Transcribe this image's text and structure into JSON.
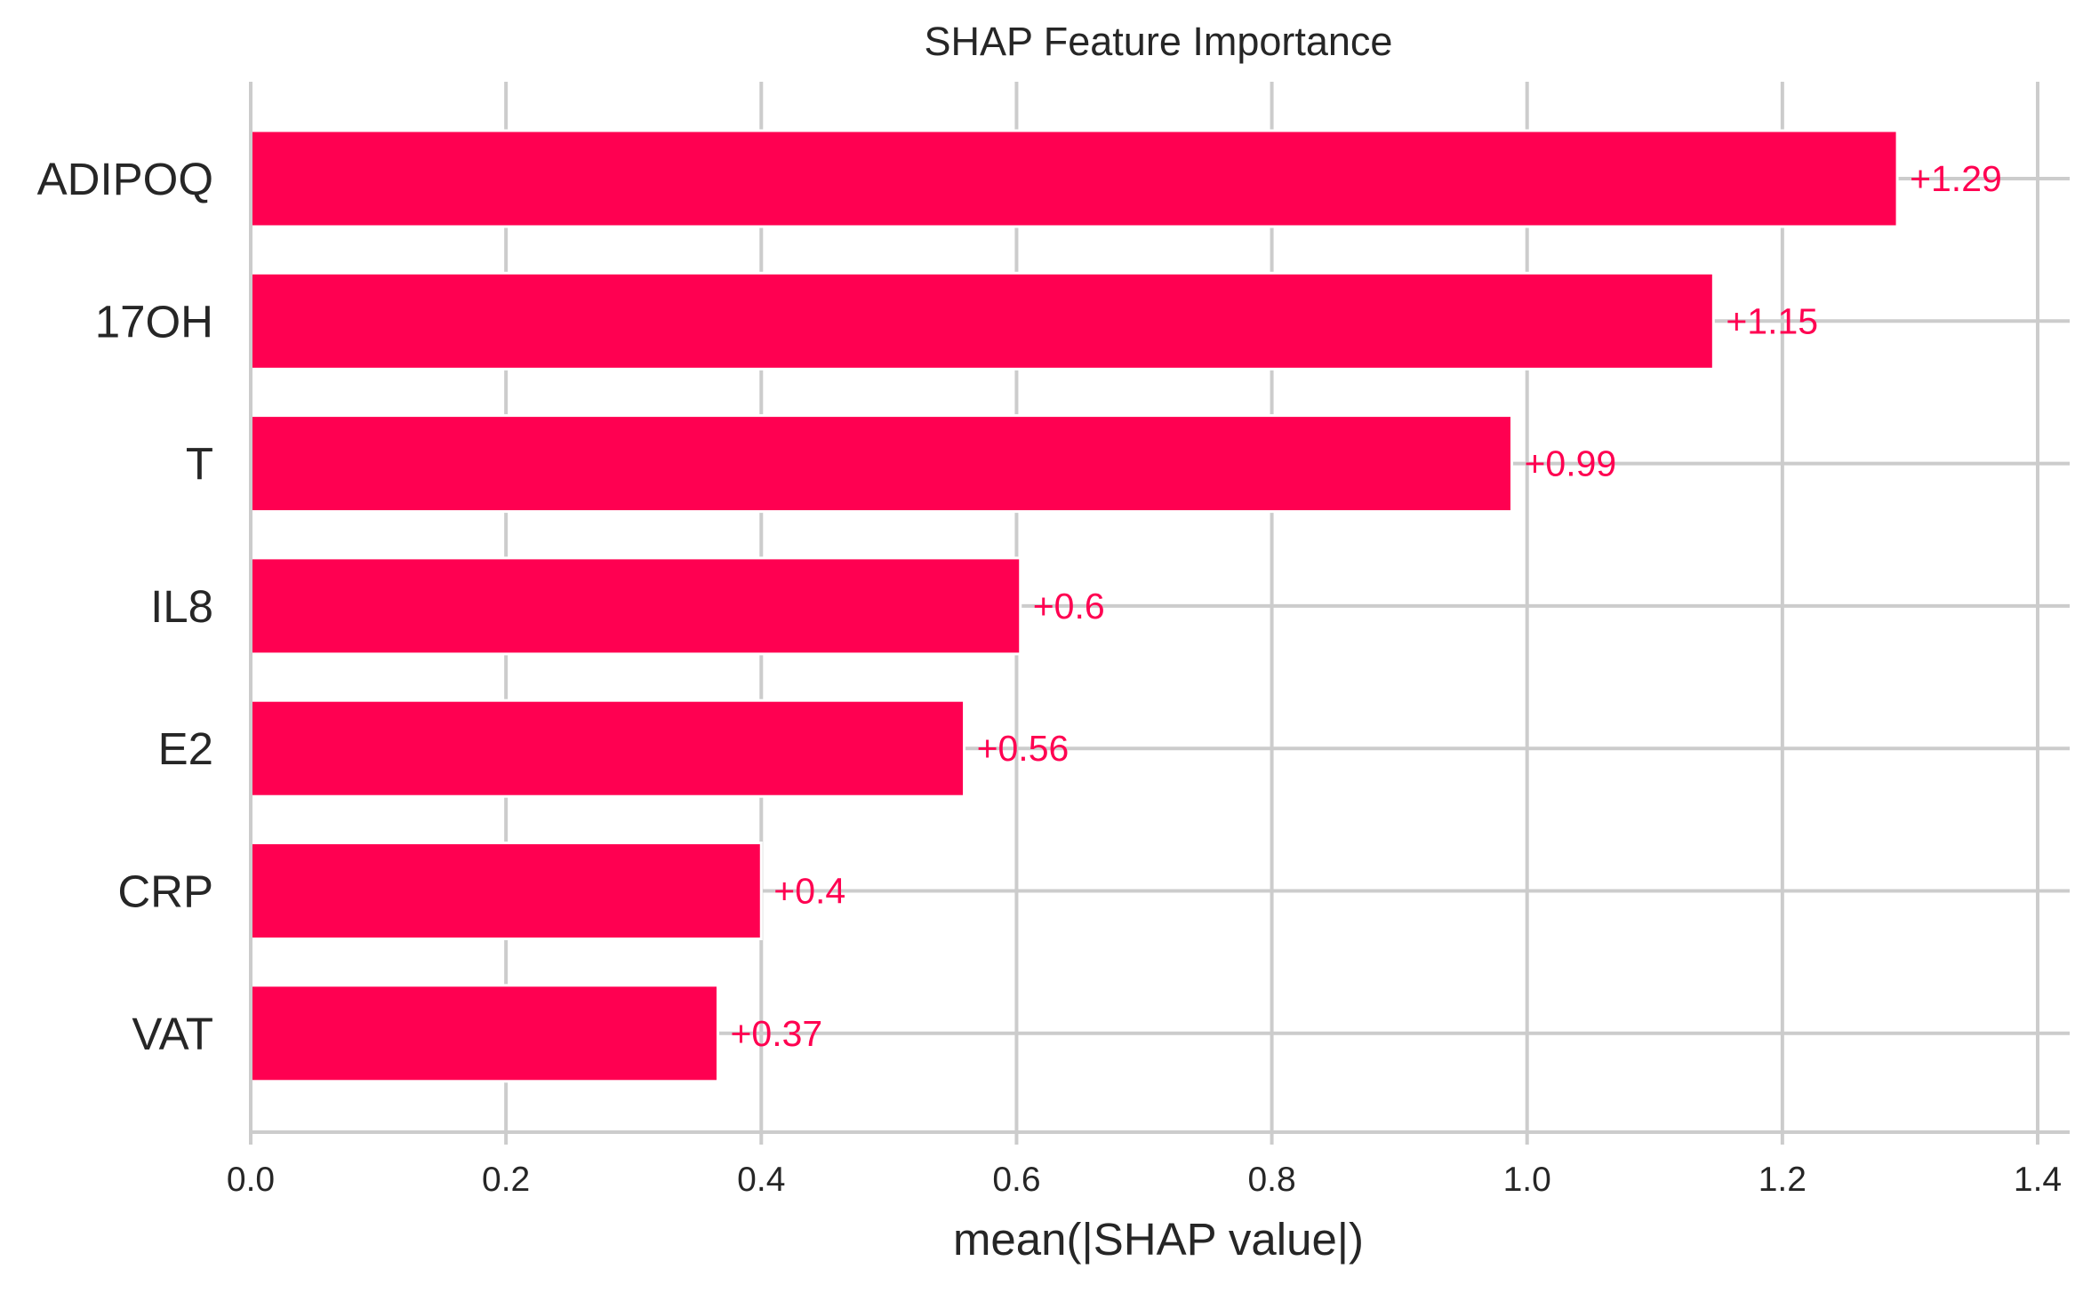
{
  "chart_data": {
    "type": "bar",
    "orientation": "horizontal",
    "title": "SHAP Feature Importance",
    "xlabel": "mean(|SHAP value|)",
    "ylabel": "",
    "xlim": [
      0,
      1.42
    ],
    "xticks": [
      0.0,
      0.2,
      0.4,
      0.6,
      0.8,
      1.0,
      1.2,
      1.4
    ],
    "xtick_labels": [
      "0.0",
      "0.2",
      "0.4",
      "0.6",
      "0.8",
      "1.0",
      "1.2",
      "1.4"
    ],
    "grid": true,
    "categories": [
      "ADIPOQ",
      "17OH",
      "T",
      "IL8",
      "E2",
      "CRP",
      "VAT"
    ],
    "values": [
      1.29,
      1.146,
      0.988,
      0.603,
      0.559,
      0.4,
      0.366
    ],
    "value_labels": [
      "+1.29",
      "+1.15",
      "+0.99",
      "+0.6",
      "+0.56",
      "+0.4",
      "+0.37"
    ],
    "colors": {
      "bar": "#ff0051",
      "value_label": "#ff0051",
      "grid": "#cccccc",
      "text": "#262626"
    }
  }
}
